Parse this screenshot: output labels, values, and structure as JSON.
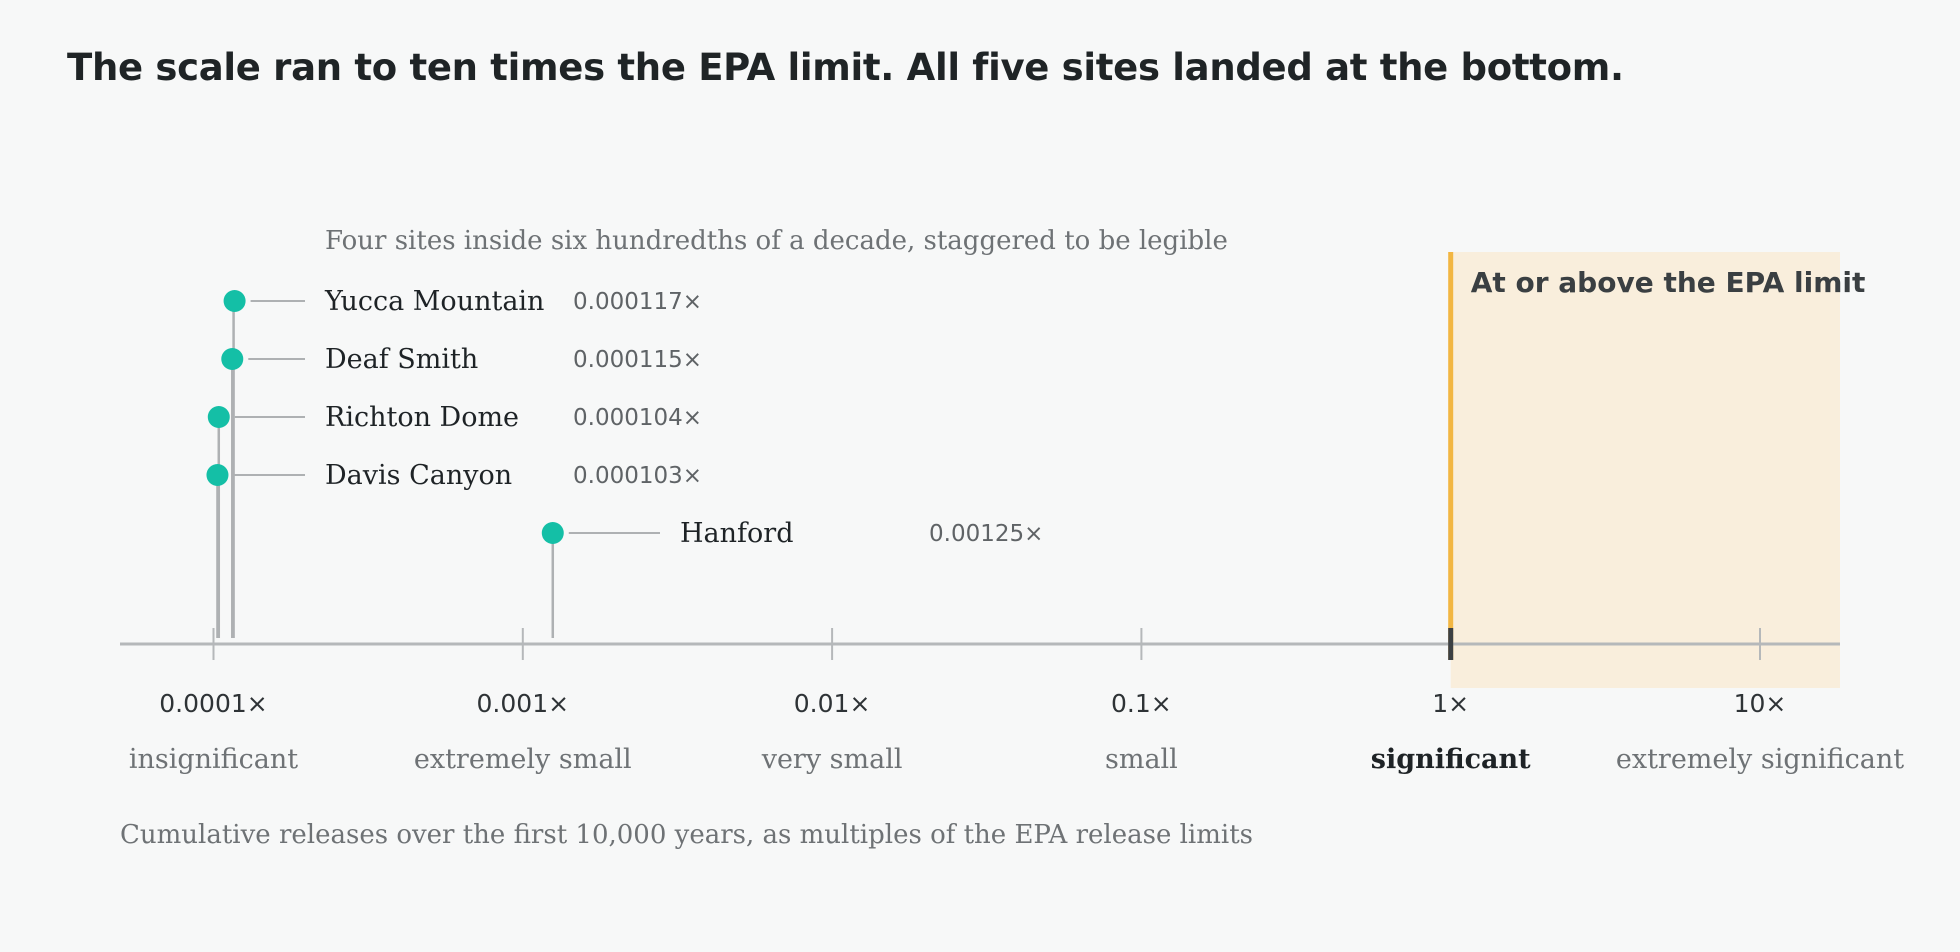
{
  "headline": "The scale ran to ten times the EPA limit. All five sites landed at the bottom.",
  "colors": {
    "background": "#f7f8f8",
    "dot": "#14bfa6",
    "leader": "#aeb1b3",
    "axis": "#b5b8ba",
    "limit_band": "#f9eedc",
    "limit_line": "#f2b642",
    "text": "#1e2326",
    "muted": "#6e7275"
  },
  "chart_data": {
    "type": "scatter",
    "x_scale": "log",
    "xlim": [
      7e-05,
      18
    ],
    "xlabel": "Cumulative releases over the first 10,000 years, as multiples of the EPA release limits",
    "ticks": [
      {
        "value": 0.0001,
        "label": "0.0001×",
        "category": "insignificant",
        "emphasis": false
      },
      {
        "value": 0.001,
        "label": "0.001×",
        "category": "extremely small",
        "emphasis": false
      },
      {
        "value": 0.01,
        "label": "0.01×",
        "category": "very small",
        "emphasis": false
      },
      {
        "value": 0.1,
        "label": "0.1×",
        "category": "small",
        "emphasis": false
      },
      {
        "value": 1,
        "label": "1×",
        "category": "significant",
        "emphasis": true
      },
      {
        "value": 10,
        "label": "10×",
        "category": "extremely significant",
        "emphasis": false
      }
    ],
    "cluster_note": "Four sites inside six hundredths of a decade, staggered to be legible",
    "limit_region": {
      "from": 1,
      "label": "At or above the EPA limit"
    },
    "points": [
      {
        "name": "Yucca Mountain",
        "value": 0.000117,
        "value_label": "0.000117×",
        "row": 0,
        "group": "cluster"
      },
      {
        "name": "Deaf Smith",
        "value": 0.000115,
        "value_label": "0.000115×",
        "row": 1,
        "group": "cluster"
      },
      {
        "name": "Richton Dome",
        "value": 0.000104,
        "value_label": "0.000104×",
        "row": 2,
        "group": "cluster"
      },
      {
        "name": "Davis Canyon",
        "value": 0.000103,
        "value_label": "0.000103×",
        "row": 3,
        "group": "cluster"
      },
      {
        "name": "Hanford",
        "value": 0.00125,
        "value_label": "0.00125×",
        "row": 4,
        "group": "single"
      }
    ]
  }
}
